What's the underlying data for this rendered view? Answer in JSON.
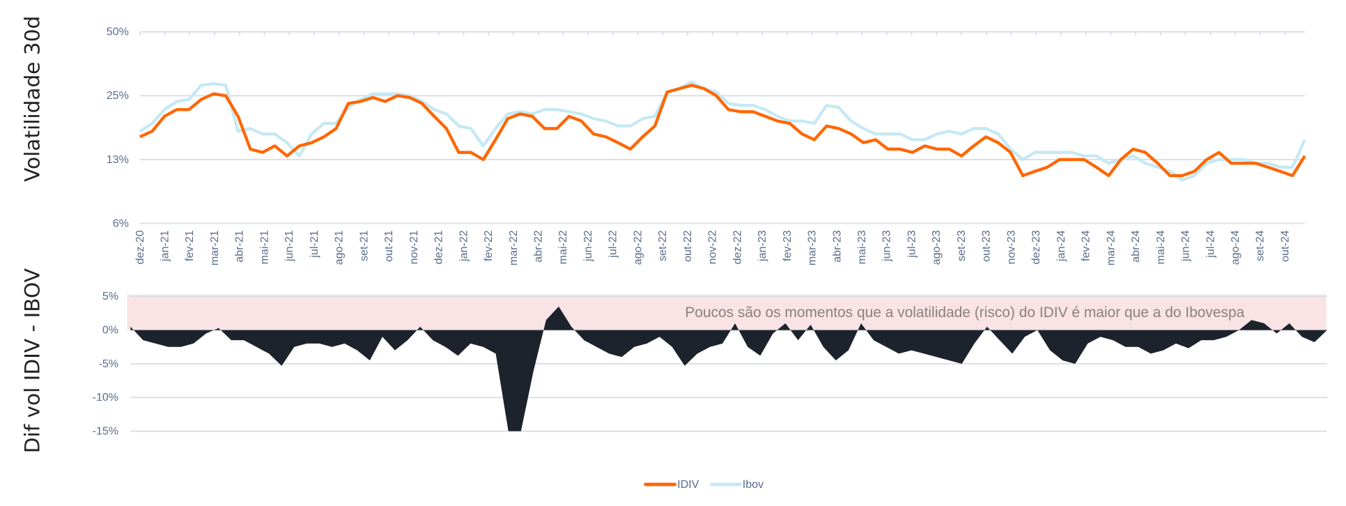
{
  "chart_data": [
    {
      "type": "line",
      "ylabel": "Volatilidade 30d",
      "yscale": "log",
      "yticks": [
        "6%",
        "13%",
        "25%",
        "50%"
      ],
      "ylim": [
        6.25,
        50
      ],
      "grid": true,
      "x_tick_labels": [
        "dez-20",
        "jan-21",
        "fev-21",
        "mar-21",
        "abr-21",
        "mai-21",
        "jun-21",
        "jul-21",
        "ago-21",
        "set-21",
        "out-21",
        "nov-21",
        "dez-21",
        "jan-22",
        "fev-22",
        "mar-22",
        "abr-22",
        "mai-22",
        "jun-22",
        "jul-22",
        "ago-22",
        "set-22",
        "out-22",
        "nov-22",
        "dez-22",
        "jan-23",
        "fev-23",
        "mar-23",
        "abr-23",
        "mai-23",
        "jun-23",
        "jul-23",
        "ago-23",
        "set-23",
        "out-23",
        "nov-23",
        "dez-23",
        "jan-24",
        "fev-24",
        "mar-24",
        "abr-24",
        "mai-24",
        "jun-24",
        "jul-24",
        "ago-24",
        "set-24",
        "out-24"
      ],
      "x_resolution": "semi-monthly from dez-20",
      "series": [
        {
          "name": "IDIV",
          "color": "#ff6600",
          "values": [
            16,
            17,
            20,
            21.5,
            21.5,
            24,
            25.5,
            25,
            20,
            14,
            13.5,
            14.5,
            13,
            14.5,
            15,
            16,
            17.5,
            23,
            23.5,
            24.5,
            23.5,
            25,
            24.5,
            23,
            20,
            17.5,
            13.5,
            13.5,
            12.5,
            15.5,
            19.5,
            20.5,
            20,
            17.5,
            17.5,
            20,
            19,
            16.5,
            16,
            15,
            14,
            16,
            18,
            26,
            27,
            28,
            27,
            25,
            21.5,
            21,
            21,
            20,
            19,
            18.5,
            16.5,
            15.5,
            18,
            17.5,
            16.5,
            15,
            15.5,
            14,
            14,
            13.5,
            14.5,
            14,
            14,
            13,
            14.5,
            16,
            15,
            13.5,
            10.5,
            11,
            11.5,
            12.5,
            12.5,
            12.5,
            11.5,
            10.5,
            12.5,
            14,
            13.5,
            12,
            10.5,
            10.5,
            11,
            12.5,
            13.5,
            12,
            12,
            12,
            11.5,
            11,
            10.5,
            13
          ]
        },
        {
          "name": "Ibov",
          "color": "#c5e9f4",
          "values": [
            17,
            18.5,
            21.5,
            23.5,
            24,
            28,
            28.5,
            28,
            17,
            17.5,
            16.5,
            16.5,
            15,
            13,
            16.5,
            18.5,
            18.5,
            22,
            24,
            25.5,
            25.5,
            25.5,
            25,
            23.5,
            21.5,
            20.5,
            18,
            17.5,
            14.5,
            17.5,
            20.5,
            21,
            20.5,
            21.5,
            21.5,
            21,
            20.5,
            19.5,
            19,
            18,
            18,
            19.5,
            20,
            26,
            27,
            29,
            27,
            26,
            23,
            22.5,
            22.5,
            21.5,
            20,
            19,
            19,
            18.5,
            22.5,
            22,
            19,
            17.5,
            16.5,
            16.5,
            16.5,
            15.5,
            15.5,
            16.5,
            17,
            16.5,
            17.5,
            17.5,
            16.5,
            14,
            12.5,
            13.5,
            13.5,
            13.5,
            13.5,
            13,
            13,
            12,
            12.5,
            13,
            12,
            11.5,
            11,
            10,
            10.5,
            12,
            12.5,
            12.5,
            12.5,
            12,
            12,
            11.5,
            11.5,
            15.5
          ]
        }
      ]
    },
    {
      "type": "area",
      "ylabel": "Dif vol IDIV - IBOV",
      "yticks": [
        "-15%",
        "-10%",
        "-5%",
        "0%",
        "5%"
      ],
      "ylim": [
        -15,
        5
      ],
      "grid": true,
      "highlight_band": {
        "from": 0,
        "to": 5,
        "color": "#f9e3e4"
      },
      "annotation": "Poucos são os momentos que a volatilidade (risco) do IDIV é maior que a do Ibovespa",
      "series": [
        {
          "color": "#1c232c",
          "values": [
            0.5,
            -1.5,
            -2,
            -2.5,
            -2.5,
            -2,
            -0.5,
            0.3,
            -1.5,
            -1.5,
            -2.5,
            -3.5,
            -5.3,
            -2.5,
            -2,
            -2,
            -2.5,
            -2,
            -3,
            -4.5,
            -1,
            -3,
            -1.5,
            0.5,
            -1.5,
            -2.5,
            -3.8,
            -2,
            -2.5,
            -3.5,
            -15,
            -15,
            -6,
            1.5,
            3.5,
            0.5,
            -1.5,
            -2.5,
            -3.5,
            -4,
            -2.5,
            -2,
            -1,
            -2.5,
            -5.3,
            -3.5,
            -2.5,
            -2,
            1,
            -2.5,
            -3.8,
            -0.5,
            1,
            -1.5,
            0.8,
            -2.5,
            -4.5,
            -3,
            1,
            -1.5,
            -2.5,
            -3.5,
            -3,
            -3.5,
            -4,
            -4.5,
            -5,
            -2,
            0.5,
            -1.5,
            -3.5,
            -1,
            0,
            -3,
            -4.5,
            -5,
            -2,
            -1,
            -1.5,
            -2.5,
            -2.5,
            -3.5,
            -3,
            -2,
            -2.7,
            -1.5,
            -1.5,
            -1,
            0,
            1.5,
            1,
            -0.5,
            1,
            -1,
            -1.8,
            0
          ]
        }
      ]
    }
  ],
  "legend": {
    "placement": "bottom",
    "items": [
      {
        "label": "IDIV",
        "color": "#ff6600"
      },
      {
        "label": "Ibov",
        "color": "#c5e9f4"
      }
    ]
  }
}
